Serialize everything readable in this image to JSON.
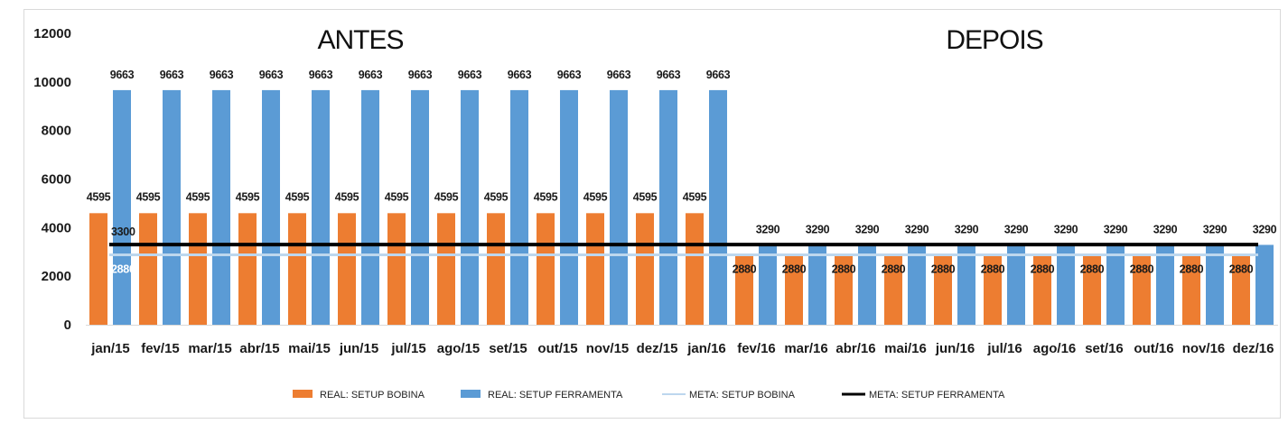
{
  "chart_data": {
    "type": "bar",
    "categories": [
      "jan/15",
      "fev/15",
      "mar/15",
      "abr/15",
      "mai/15",
      "jun/15",
      "jul/15",
      "ago/15",
      "set/15",
      "out/15",
      "nov/15",
      "dez/15",
      "jan/16",
      "fev/16",
      "mar/16",
      "abr/16",
      "mai/16",
      "jun/16",
      "jul/16",
      "ago/16",
      "set/16",
      "out/16",
      "nov/16",
      "dez/16"
    ],
    "series": [
      {
        "name": "REAL: SETUP BOBINA",
        "kind": "bar",
        "color": "#ED7D31",
        "values": [
          4595,
          4595,
          4595,
          4595,
          4595,
          4595,
          4595,
          4595,
          4595,
          4595,
          4595,
          4595,
          4595,
          2880,
          2880,
          2880,
          2880,
          2880,
          2880,
          2880,
          2880,
          2880,
          2880,
          2880
        ]
      },
      {
        "name": "REAL: SETUP FERRAMENTA",
        "kind": "bar",
        "color": "#5B9BD5",
        "values": [
          9663,
          9663,
          9663,
          9663,
          9663,
          9663,
          9663,
          9663,
          9663,
          9663,
          9663,
          9663,
          9663,
          3290,
          3290,
          3290,
          3290,
          3290,
          3290,
          3290,
          3290,
          3290,
          3290,
          3290
        ]
      },
      {
        "name": "META: SETUP BOBINA",
        "kind": "line",
        "color": "#BDD7EE",
        "value": 2880,
        "label": "2880"
      },
      {
        "name": "META: SETUP FERRAMENTA",
        "kind": "line",
        "color": "#000000",
        "value": 3300,
        "label": "3300"
      }
    ],
    "ylim": [
      0,
      12000
    ],
    "yticks": [
      "0",
      "2000",
      "4000",
      "6000",
      "8000",
      "10000",
      "12000"
    ],
    "annotations": [
      "ANTES",
      "DEPOIS"
    ],
    "legend_position": "bottom",
    "grid": false
  }
}
